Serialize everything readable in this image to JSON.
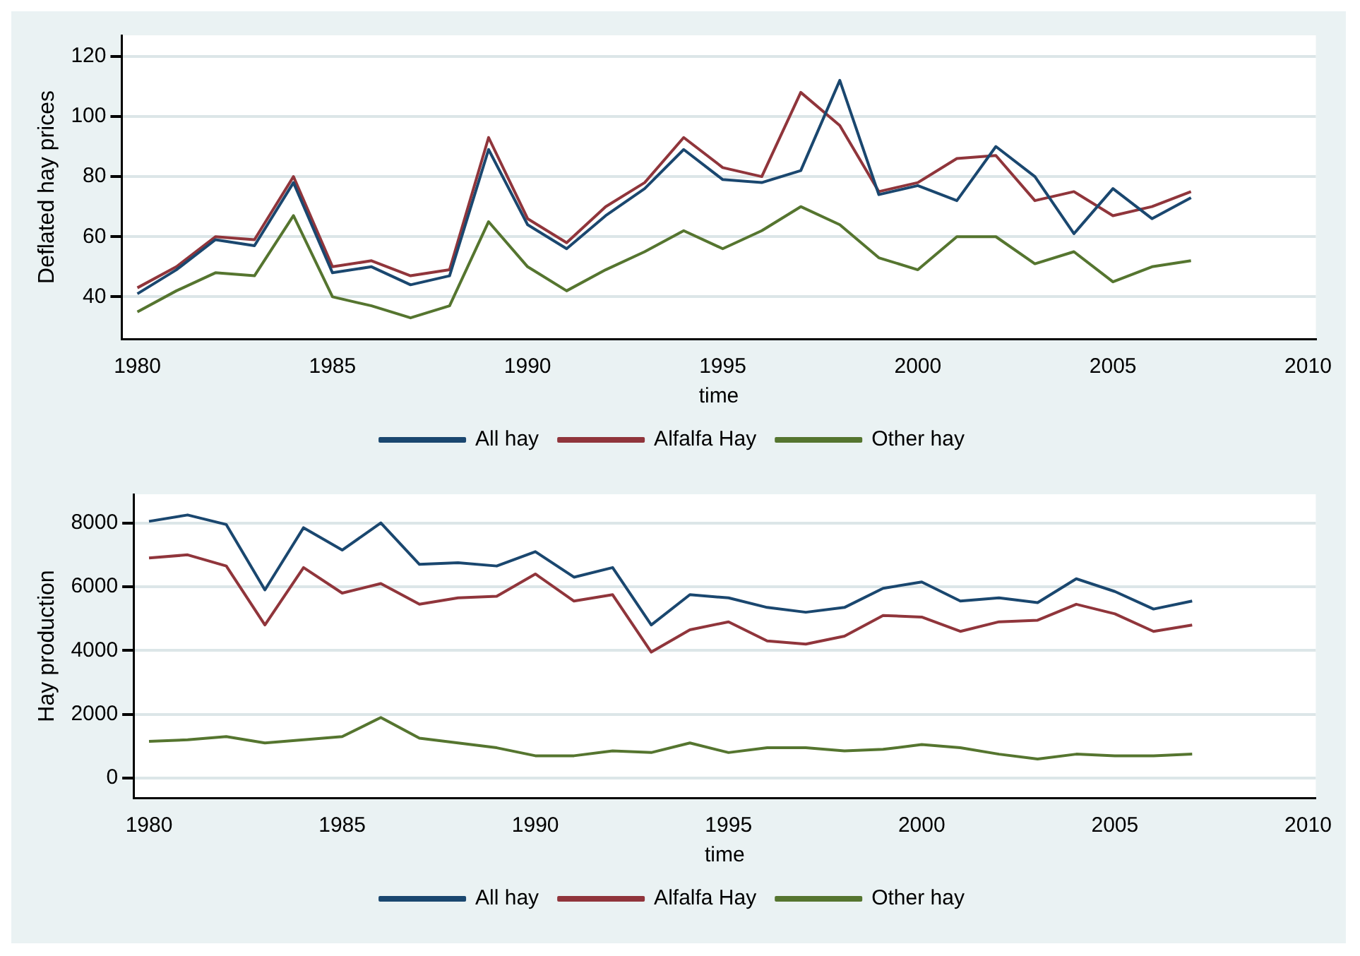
{
  "chart_data": [
    {
      "type": "line",
      "xlabel": "time",
      "ylabel": "Deflated hay prices",
      "x": [
        1980,
        1981,
        1982,
        1983,
        1984,
        1985,
        1986,
        1987,
        1988,
        1989,
        1990,
        1991,
        1992,
        1993,
        1994,
        1995,
        1996,
        1997,
        1998,
        1999,
        2000,
        2001,
        2002,
        2003,
        2004,
        2005,
        2006,
        2007
      ],
      "xlim": [
        1979.6,
        2010.2
      ],
      "xticks": [
        1980,
        1985,
        1990,
        1995,
        2000,
        2005,
        2010
      ],
      "ylim": [
        26,
        127
      ],
      "yticks": [
        40,
        60,
        80,
        100,
        120
      ],
      "grid": "y",
      "legend": "bottom",
      "series": [
        {
          "name": "All hay",
          "color": "#1a476f",
          "values": [
            41,
            49,
            59,
            57,
            78,
            48,
            50,
            44,
            47,
            89,
            64,
            56,
            67,
            76,
            89,
            79,
            78,
            82,
            112,
            74,
            77,
            72,
            90,
            80,
            61,
            76,
            66,
            73
          ]
        },
        {
          "name": "Alfalfa Hay",
          "color": "#90353b",
          "values": [
            43,
            50,
            60,
            59,
            80,
            50,
            52,
            47,
            49,
            93,
            66,
            58,
            70,
            78,
            93,
            83,
            80,
            108,
            97,
            75,
            78,
            86,
            87,
            72,
            75,
            67,
            70,
            75
          ]
        },
        {
          "name": "Other hay",
          "color": "#55752f",
          "values": [
            35,
            42,
            48,
            47,
            67,
            40,
            37,
            33,
            37,
            65,
            50,
            42,
            49,
            55,
            62,
            56,
            62,
            70,
            64,
            53,
            49,
            60,
            60,
            51,
            55,
            45,
            50,
            52
          ]
        }
      ]
    },
    {
      "type": "line",
      "xlabel": "time",
      "ylabel": "Hay production",
      "x": [
        1980,
        1981,
        1982,
        1983,
        1984,
        1985,
        1986,
        1987,
        1988,
        1989,
        1990,
        1991,
        1992,
        1993,
        1994,
        1995,
        1996,
        1997,
        1998,
        1999,
        2000,
        2001,
        2002,
        2003,
        2004,
        2005,
        2006,
        2007
      ],
      "xlim": [
        1979.6,
        2010.2
      ],
      "xticks": [
        1980,
        1985,
        1990,
        1995,
        2000,
        2005,
        2010
      ],
      "ylim": [
        -620,
        8900
      ],
      "yticks": [
        0,
        2000,
        4000,
        6000,
        8000
      ],
      "grid": "y",
      "legend": "bottom",
      "series": [
        {
          "name": "All hay",
          "color": "#1a476f",
          "values": [
            8050,
            8250,
            7950,
            5900,
            7850,
            7150,
            8000,
            6700,
            6750,
            6650,
            7100,
            6300,
            6600,
            4800,
            5750,
            5650,
            5350,
            5200,
            5350,
            5950,
            6150,
            5550,
            5650,
            5500,
            6250,
            5850,
            5300,
            5550
          ]
        },
        {
          "name": "Alfalfa Hay",
          "color": "#90353b",
          "values": [
            6900,
            7000,
            6650,
            4800,
            6600,
            5800,
            6100,
            5450,
            5650,
            5700,
            6400,
            5550,
            5750,
            3950,
            4650,
            4900,
            4300,
            4200,
            4450,
            5100,
            5050,
            4600,
            4900,
            4950,
            5450,
            5150,
            4600,
            4800
          ]
        },
        {
          "name": "Other hay",
          "color": "#55752f",
          "values": [
            1150,
            1200,
            1300,
            1100,
            1200,
            1300,
            1900,
            1250,
            1100,
            950,
            700,
            700,
            850,
            800,
            1100,
            800,
            950,
            950,
            850,
            900,
            1050,
            950,
            750,
            600,
            750,
            700,
            700,
            750
          ]
        }
      ]
    }
  ]
}
